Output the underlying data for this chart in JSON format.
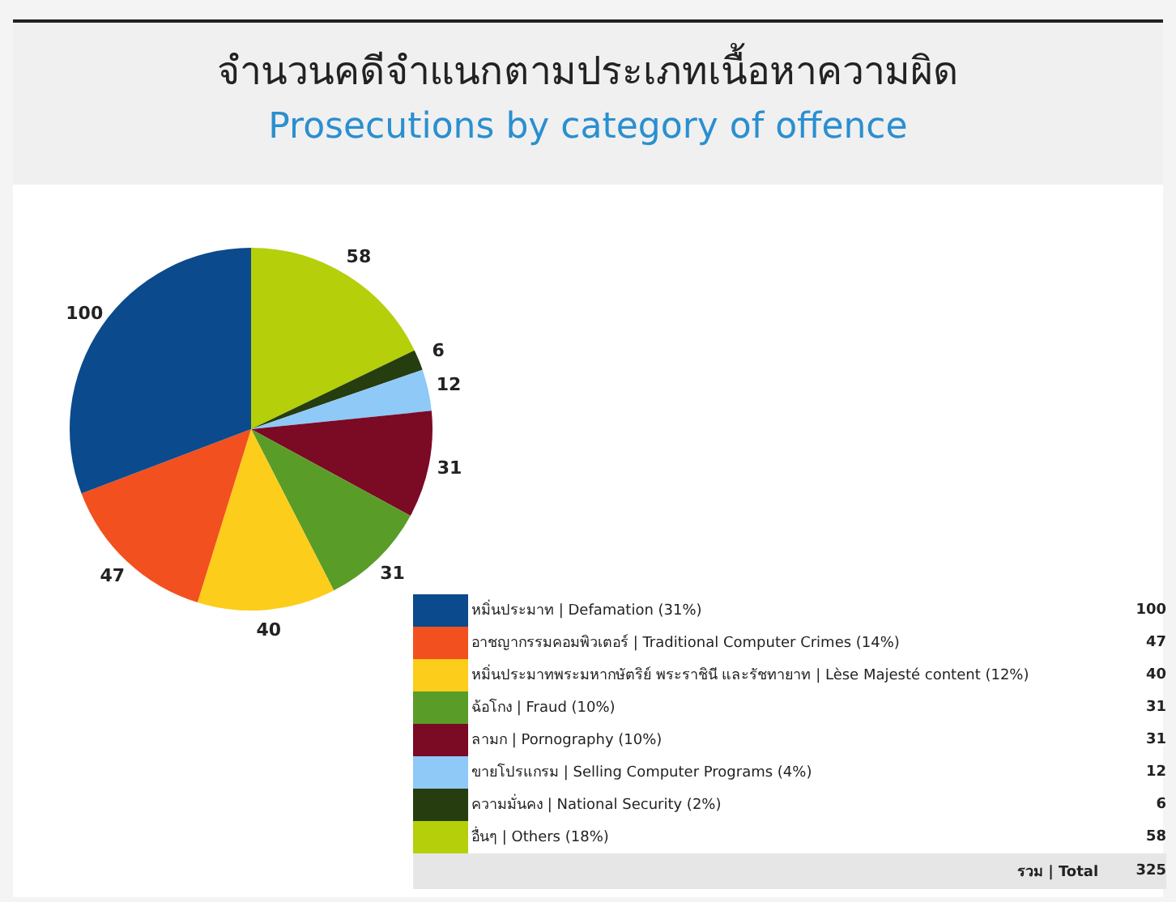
{
  "chart_data": {
    "type": "pie",
    "title": "จำนวนคดีจำแนกตามประเภทเนื้อหาความผิด",
    "subtitle": "Prosecutions by category of offence",
    "categories": [
      "หมิ่นประมาท | Defamation (31%)",
      "อาชญากรรมคอมพิวเตอร์ | Traditional Computer Crimes (14%)",
      "หมิ่นประมาทพระมหากษัตริย์ พระราชินี และรัชทายาท | Lèse Majesté content (12%)",
      "ฉ้อโกง | Fraud (10%)",
      "ลามก | Pornography (10%)",
      "ขายโปรแกรม | Selling Computer Programs (4%)",
      "ความมั่นคง | National Security (2%)",
      "อื่นๆ | Others (18%)"
    ],
    "values": [
      100,
      47,
      40,
      31,
      31,
      12,
      6,
      58
    ],
    "colors": [
      "#0b4a8c",
      "#f2501e",
      "#fccd1a",
      "#5a9c28",
      "#7b0a25",
      "#8ec9f7",
      "#263d10",
      "#b5cf0a"
    ],
    "value_labels": [
      "100",
      "47",
      "40",
      "31",
      "31",
      "12",
      "6",
      "58"
    ],
    "legend": "bottom right",
    "annotations": [
      "รวม | Total",
      "325"
    ]
  }
}
